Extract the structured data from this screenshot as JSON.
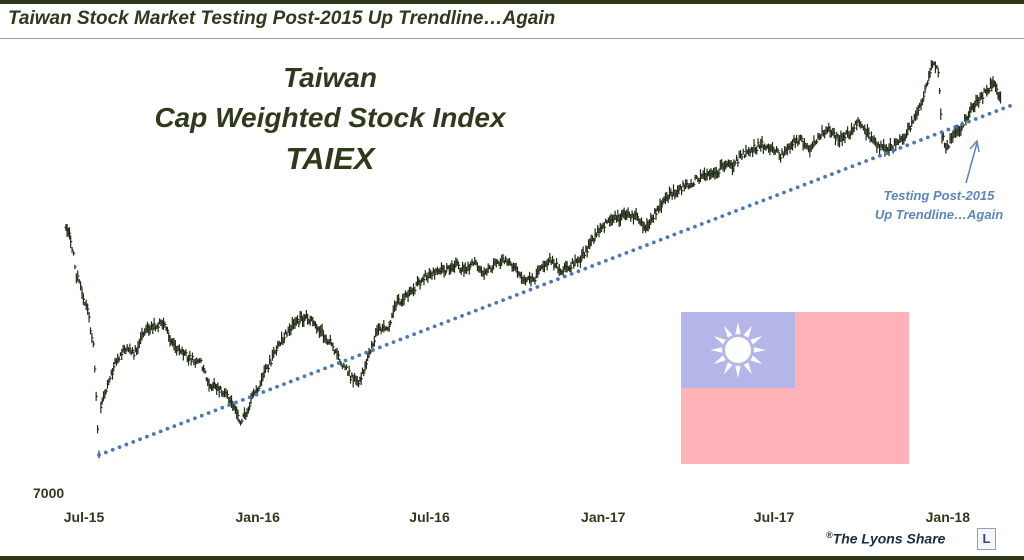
{
  "header": {
    "title": "Taiwan Stock Market Testing Post-2015 Up Trendline…Again"
  },
  "credit": {
    "symbol": "®",
    "text": "The Lyons Share",
    "logo_letter": "L"
  },
  "flag": {
    "canton_color": "#b3b6e6",
    "field_color": "#ffb3b8",
    "sun_color": "#ffffff",
    "sun_icon": "white-sun-icon"
  },
  "colors": {
    "price": "#1f2a14",
    "trendline": "#4d79b3",
    "annotation": "#5b86bd",
    "text": "#2f3a1c"
  },
  "chart_data": {
    "type": "line",
    "title_lines": [
      "Taiwan",
      "Cap Weighted Stock Index",
      "TAIEX"
    ],
    "xlabel": "",
    "ylabel": "",
    "x_ticks": [
      "Jul-15",
      "Jan-16",
      "Jul-16",
      "Jan-17",
      "Jul-17",
      "Jan-18"
    ],
    "y_ticks": [
      7000
    ],
    "xlim": [
      "2015-07-01",
      "2018-04-15"
    ],
    "ylim": [
      7000,
      11400
    ],
    "grid": false,
    "series": [
      {
        "style": "bar",
        "x": [
          "2015-07-20",
          "2015-07-25",
          "2015-07-31",
          "2015-08-06",
          "2015-08-12",
          "2015-08-18",
          "2015-08-24",
          "2015-08-26",
          "2015-09-02",
          "2015-09-10",
          "2015-09-20",
          "2015-09-30",
          "2015-10-10",
          "2015-10-20",
          "2015-10-30",
          "2015-11-10",
          "2015-11-20",
          "2015-12-01",
          "2015-12-10",
          "2015-12-20",
          "2016-01-01",
          "2016-01-10",
          "2016-01-21",
          "2016-02-01",
          "2016-02-15",
          "2016-02-28",
          "2016-03-10",
          "2016-03-20",
          "2016-04-01",
          "2016-04-12",
          "2016-04-25",
          "2016-05-05",
          "2016-05-15",
          "2016-05-25",
          "2016-06-05",
          "2016-06-15",
          "2016-06-25",
          "2016-07-05",
          "2016-07-15",
          "2016-07-25",
          "2016-08-05",
          "2016-08-15",
          "2016-08-25",
          "2016-09-05",
          "2016-09-15",
          "2016-09-25",
          "2016-10-05",
          "2016-10-15",
          "2016-10-25",
          "2016-11-05",
          "2016-11-15",
          "2016-11-25",
          "2016-12-05",
          "2016-12-15",
          "2016-12-25",
          "2017-01-05",
          "2017-01-15",
          "2017-01-25",
          "2017-02-05",
          "2017-02-15",
          "2017-02-25",
          "2017-03-05",
          "2017-03-15",
          "2017-03-25",
          "2017-04-05",
          "2017-04-15",
          "2017-04-25",
          "2017-05-05",
          "2017-05-15",
          "2017-05-25",
          "2017-06-05",
          "2017-06-15",
          "2017-06-25",
          "2017-07-05",
          "2017-07-15",
          "2017-07-25",
          "2017-08-05",
          "2017-08-15",
          "2017-08-25",
          "2017-09-05",
          "2017-09-15",
          "2017-09-25",
          "2017-10-05",
          "2017-10-15",
          "2017-10-25",
          "2017-11-05",
          "2017-11-15",
          "2017-11-25",
          "2017-12-05",
          "2017-12-15",
          "2017-12-25",
          "2018-01-05",
          "2018-01-15",
          "2018-01-23",
          "2018-01-29",
          "2018-02-02",
          "2018-02-06",
          "2018-02-12",
          "2018-02-22",
          "2018-03-02",
          "2018-03-10",
          "2018-03-20",
          "2018-03-28",
          "2018-04-05"
        ],
        "values": [
          9600,
          9500,
          9150,
          9000,
          8800,
          8500,
          7430,
          7900,
          8100,
          8300,
          8450,
          8400,
          8600,
          8650,
          8700,
          8500,
          8400,
          8350,
          8300,
          8100,
          8050,
          7950,
          7720,
          7950,
          8200,
          8450,
          8600,
          8700,
          8750,
          8650,
          8500,
          8350,
          8200,
          8100,
          8380,
          8650,
          8650,
          8900,
          8950,
          9050,
          9150,
          9200,
          9200,
          9250,
          9200,
          9300,
          9150,
          9250,
          9300,
          9250,
          9100,
          9100,
          9200,
          9300,
          9200,
          9250,
          9300,
          9450,
          9600,
          9700,
          9700,
          9750,
          9700,
          9600,
          9750,
          9900,
          9950,
          10000,
          10050,
          10100,
          10100,
          10200,
          10200,
          10300,
          10350,
          10400,
          10350,
          10300,
          10400,
          10450,
          10350,
          10500,
          10550,
          10450,
          10500,
          10600,
          10500,
          10400,
          10350,
          10400,
          10500,
          10650,
          10900,
          11200,
          11100,
          10500,
          10350,
          10450,
          10550,
          10700,
          10800,
          10900,
          11000,
          10850
        ]
      },
      {
        "name": "Post-2015 Up Trendline",
        "style": "dotted",
        "x": [
          "2015-08-24",
          "2018-04-15"
        ],
        "values": [
          7430,
          10770
        ]
      }
    ],
    "annotation": {
      "lines": [
        "Testing Post-2015",
        "Up Trendline…Again"
      ]
    }
  }
}
